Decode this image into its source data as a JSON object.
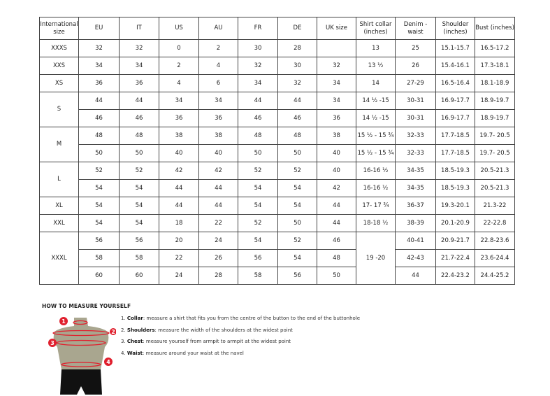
{
  "headers": [
    "International size",
    "EU",
    "IT",
    "US",
    "AU",
    "FR",
    "DE",
    "UK size",
    "Shirt collar (inches)",
    "Denim - waist",
    "Shoulder (inches)",
    "Bust (inches)"
  ],
  "groups": [
    {
      "size": "XXXS",
      "rows": [
        [
          "32",
          "32",
          "0",
          "2",
          "30",
          "28",
          "",
          "13",
          "25",
          "15.1-15.7",
          "16.5-17.2"
        ]
      ]
    },
    {
      "size": "XXS",
      "rows": [
        [
          "34",
          "34",
          "2",
          "4",
          "32",
          "30",
          "32",
          "13 ½",
          "26",
          "15.4-16.1",
          "17.3-18.1"
        ]
      ]
    },
    {
      "size": "XS",
      "rows": [
        [
          "36",
          "36",
          "4",
          "6",
          "34",
          "32",
          "34",
          "14",
          "27-29",
          "16.5-16.4",
          "18.1-18.9"
        ]
      ]
    },
    {
      "size": "S",
      "rows": [
        [
          "44",
          "44",
          "34",
          "34",
          "44",
          "44",
          "34",
          "14 ½ -15",
          "30-31",
          "16.9-17.7",
          "18.9-19.7"
        ],
        [
          "46",
          "46",
          "36",
          "36",
          "46",
          "46",
          "36",
          "14 ½ -15",
          "30-31",
          "16.9-17.7",
          "18.9-19.7"
        ]
      ]
    },
    {
      "size": "M",
      "rows": [
        [
          "48",
          "48",
          "38",
          "38",
          "48",
          "48",
          "38",
          "15 ½ - 15 ¾",
          "32-33",
          "17.7-18.5",
          "19.7- 20.5"
        ],
        [
          "50",
          "50",
          "40",
          "40",
          "50",
          "50",
          "40",
          "15 ½ - 15 ¾",
          "32-33",
          "17.7-18.5",
          "19.7- 20.5"
        ]
      ]
    },
    {
      "size": "L",
      "rows": [
        [
          "52",
          "52",
          "42",
          "42",
          "52",
          "52",
          "40",
          "16-16 ½",
          "34-35",
          "18.5-19.3",
          "20.5-21.3"
        ],
        [
          "54",
          "54",
          "44",
          "44",
          "54",
          "54",
          "42",
          "16-16 ½",
          "34-35",
          "18.5-19.3",
          "20.5-21.3"
        ]
      ]
    },
    {
      "size": "XL",
      "rows": [
        [
          "54",
          "54",
          "44",
          "44",
          "54",
          "54",
          "44",
          "17- 17 ¾",
          "36-37",
          "19.3-20.1",
          "21.3-22"
        ]
      ]
    },
    {
      "size": "XXL",
      "rows": [
        [
          "54",
          "54",
          "18",
          "22",
          "52",
          "50",
          "44",
          "18-18 ½",
          "38-39",
          "20.1-20.9",
          "22-22.8"
        ]
      ]
    },
    {
      "size": "XXXL",
      "merged_collar": "19 -20",
      "rows": [
        [
          "56",
          "56",
          "20",
          "24",
          "54",
          "52",
          "46",
          null,
          "40-41",
          "20.9-21.7",
          "22.8-23.6"
        ],
        [
          "58",
          "58",
          "22",
          "26",
          "56",
          "54",
          "48",
          null,
          "42-43",
          "21.7-22.4",
          "23.6-24.4"
        ],
        [
          "60",
          "60",
          "24",
          "28",
          "58",
          "56",
          "50",
          null,
          "44",
          "22.4-23.2",
          "24.4-25.2"
        ]
      ]
    }
  ],
  "howto": {
    "title": "HOW TO MEASURE YOURSELF",
    "steps": [
      {
        "num": "1.",
        "label": "Collar",
        "text": ": measure a shirt that fits you from the centre of the button to the end of the buttonhole"
      },
      {
        "num": "2.",
        "label": "Shoulders",
        "text": ": measure the width of the shoulders at the widest point"
      },
      {
        "num": "3.",
        "label": "Chest",
        "text": ": measure yourself from armpit to armpit at the widest point"
      },
      {
        "num": "4.",
        "label": "Waist",
        "text": ": measure around your waist at the navel"
      }
    ],
    "markers": [
      "1",
      "2",
      "3",
      "4"
    ]
  },
  "colors": {
    "marker": "#e0202e",
    "torso": "#a9a68f",
    "shorts": "#111111",
    "border": "#444444"
  }
}
